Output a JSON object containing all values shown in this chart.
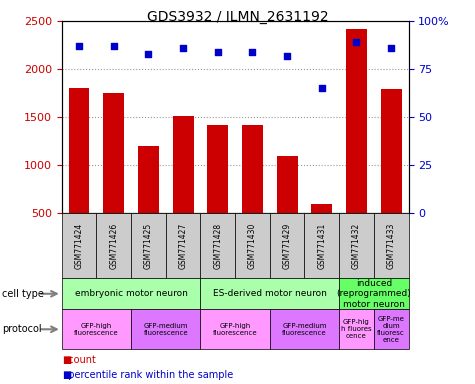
{
  "title": "GDS3932 / ILMN_2631192",
  "samples": [
    "GSM771424",
    "GSM771426",
    "GSM771425",
    "GSM771427",
    "GSM771428",
    "GSM771430",
    "GSM771429",
    "GSM771431",
    "GSM771432",
    "GSM771433"
  ],
  "counts": [
    1800,
    1750,
    1200,
    1510,
    1420,
    1420,
    1090,
    590,
    2420,
    1790
  ],
  "percentiles": [
    87,
    87,
    83,
    86,
    84,
    84,
    82,
    65,
    89,
    86
  ],
  "bar_color": "#cc0000",
  "dot_color": "#0000cc",
  "ylim_left": [
    500,
    2500
  ],
  "ylim_right": [
    0,
    100
  ],
  "yticks_left": [
    500,
    1000,
    1500,
    2000,
    2500
  ],
  "yticks_right": [
    0,
    25,
    50,
    75,
    100
  ],
  "cell_type_groups": [
    {
      "label": "embryonic motor neuron",
      "start": 0,
      "end": 4,
      "color": "#aaffaa"
    },
    {
      "label": "ES-derived motor neuron",
      "start": 4,
      "end": 8,
      "color": "#aaffaa"
    },
    {
      "label": "induced\n(reprogrammed)\nmotor neuron",
      "start": 8,
      "end": 10,
      "color": "#66ff66"
    }
  ],
  "protocol_groups": [
    {
      "label": "GFP-high\nfluorescence",
      "start": 0,
      "end": 2,
      "color": "#ff99ff"
    },
    {
      "label": "GFP-medium\nfluorescence",
      "start": 2,
      "end": 4,
      "color": "#dd77ff"
    },
    {
      "label": "GFP-high\nfluorescence",
      "start": 4,
      "end": 6,
      "color": "#ff99ff"
    },
    {
      "label": "GFP-medium\nfluorescence",
      "start": 6,
      "end": 8,
      "color": "#dd77ff"
    },
    {
      "label": "GFP-hig\nh fluores\ncence",
      "start": 8,
      "end": 9,
      "color": "#ff99ff"
    },
    {
      "label": "GFP-me\ndium\nfluoresc\nence",
      "start": 9,
      "end": 10,
      "color": "#dd77ff"
    }
  ],
  "legend_count_color": "#cc0000",
  "legend_dot_color": "#0000cc",
  "grid_color": "#999999",
  "tick_label_color_left": "#cc0000",
  "tick_label_color_right": "#0000cc",
  "sample_bg": "#cccccc"
}
